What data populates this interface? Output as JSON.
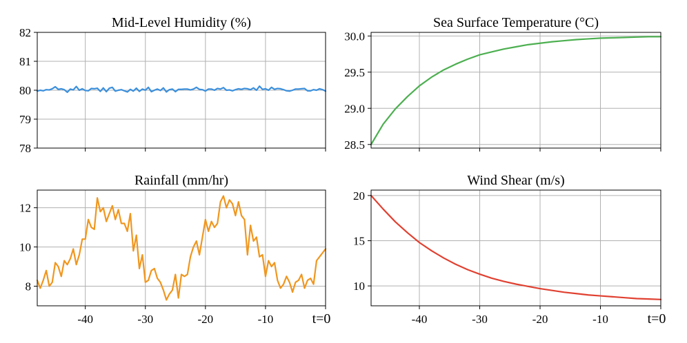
{
  "chart_data": [
    {
      "type": "line",
      "title": "Mid-Level Humidity (%)",
      "color": "#3a8fdc",
      "xlim": [
        -48,
        0
      ],
      "ylim": [
        78,
        82
      ],
      "xticks": [
        -40,
        -30,
        -20,
        -10,
        0
      ],
      "xtick_labels": [],
      "yticks": [
        78,
        79,
        80,
        81,
        82
      ],
      "ytick_labels": [
        "78",
        "79",
        "80",
        "81",
        "82"
      ],
      "grid": true,
      "x": [
        -48,
        -47.5,
        -47,
        -46.5,
        -46,
        -45.5,
        -45,
        -44.5,
        -44,
        -43.5,
        -43,
        -42.5,
        -42,
        -41.5,
        -41,
        -40.5,
        -40,
        -39.5,
        -39,
        -38.5,
        -38,
        -37.5,
        -37,
        -36.5,
        -36,
        -35.5,
        -35,
        -34.5,
        -34,
        -33.5,
        -33,
        -32.5,
        -32,
        -31.5,
        -31,
        -30.5,
        -30,
        -29.5,
        -29,
        -28.5,
        -28,
        -27.5,
        -27,
        -26.5,
        -26,
        -25.5,
        -25,
        -24.5,
        -24,
        -23.5,
        -23,
        -22.5,
        -22,
        -21.5,
        -21,
        -20.5,
        -20,
        -19.5,
        -19,
        -18.5,
        -18,
        -17.5,
        -17,
        -16.5,
        -16,
        -15.5,
        -15,
        -14.5,
        -14,
        -13.5,
        -13,
        -12.5,
        -12,
        -11.5,
        -11,
        -10.5,
        -10,
        -9.5,
        -9,
        -8.5,
        -8,
        -7.5,
        -7,
        -6.5,
        -6,
        -5.5,
        -5,
        -4.5,
        -4,
        -3.5,
        -3,
        -2.5,
        -2,
        -1.5,
        -1,
        -0.5,
        0
      ],
      "y": [
        79.97,
        80,
        79.98,
        80.02,
        80.01,
        80.05,
        80.12,
        80.03,
        80.05,
        80.02,
        79.93,
        80.04,
        80.01,
        80.13,
        80,
        80.05,
        79.99,
        79.98,
        80.06,
        80.05,
        80.07,
        79.96,
        80.08,
        79.95,
        80.07,
        80.1,
        79.97,
        80,
        80.02,
        79.98,
        79.94,
        80.03,
        79.97,
        80.07,
        79.96,
        80.04,
        80,
        80.1,
        79.95,
        80,
        80.04,
        79.99,
        80.08,
        79.94,
        80.02,
        80.04,
        79.95,
        80.03,
        80.03,
        80.04,
        80.04,
        80.01,
        80.04,
        80.1,
        80.03,
        80.02,
        79.97,
        80.04,
        80.04,
        80,
        80.06,
        80.04,
        80.09,
        80,
        80.01,
        79.98,
        80.02,
        80.05,
        80.03,
        80.06,
        80.05,
        80.02,
        80.08,
        80,
        80.14,
        80.03,
        80.05,
        80,
        80.1,
        80.03,
        80.06,
        80.05,
        80.02,
        79.98,
        79.97,
        80,
        80.04,
        80.04,
        80.05,
        80.06,
        79.98,
        79.98,
        80.02,
        80,
        80.05,
        80.02,
        79.97
      ]
    },
    {
      "type": "line",
      "title": "Sea Surface Temperature (°C)",
      "color": "#4caf50",
      "xlim": [
        -48,
        0
      ],
      "ylim": [
        28.45,
        30.05
      ],
      "xticks": [
        -40,
        -30,
        -20,
        -10,
        0
      ],
      "xtick_labels": [],
      "yticks": [
        28.5,
        29.0,
        29.5,
        30.0
      ],
      "ytick_labels": [
        "28.5",
        "29.0",
        "29.5",
        "30.0"
      ],
      "grid": true,
      "x": [
        -48,
        -46,
        -44,
        -42,
        -40,
        -38,
        -36,
        -34,
        -32,
        -30,
        -28,
        -26,
        -24,
        -22,
        -20,
        -18,
        -16,
        -14,
        -12,
        -10,
        -8,
        -6,
        -4,
        -2,
        0
      ],
      "y": [
        28.5,
        28.78,
        28.99,
        29.16,
        29.31,
        29.43,
        29.53,
        29.61,
        29.68,
        29.74,
        29.78,
        29.82,
        29.85,
        29.88,
        29.9,
        29.92,
        29.935,
        29.95,
        29.96,
        29.97,
        29.975,
        29.98,
        29.985,
        29.99,
        29.99
      ]
    },
    {
      "type": "line",
      "title": "Rainfall (mm/hr)",
      "color": "#f0961e",
      "xlim": [
        -48,
        0
      ],
      "ylim": [
        7.0,
        12.9
      ],
      "xticks": [
        -40,
        -30,
        -20,
        -10,
        0
      ],
      "xtick_labels": [
        "-40",
        "-30",
        "-20",
        "-10",
        "t=0"
      ],
      "yticks": [
        8,
        10,
        12
      ],
      "ytick_labels": [
        "8",
        "10",
        "12"
      ],
      "grid": true,
      "x": [
        -48,
        -47.5,
        -47,
        -46.5,
        -46,
        -45.5,
        -45,
        -44.5,
        -44,
        -43.5,
        -43,
        -42.5,
        -42,
        -41.5,
        -41,
        -40.5,
        -40,
        -39.5,
        -39,
        -38.5,
        -38,
        -37.5,
        -37,
        -36.5,
        -36,
        -35.5,
        -35,
        -34.5,
        -34,
        -33.5,
        -33,
        -32.5,
        -32,
        -31.5,
        -31,
        -30.5,
        -30,
        -29.5,
        -29,
        -28.5,
        -28,
        -27.5,
        -27,
        -26.5,
        -26,
        -25.5,
        -25,
        -24.5,
        -24,
        -23.5,
        -23,
        -22.5,
        -22,
        -21.5,
        -21,
        -20.5,
        -20,
        -19.5,
        -19,
        -18.5,
        -18,
        -17.5,
        -17,
        -16.5,
        -16,
        -15.5,
        -15,
        -14.5,
        -14,
        -13.5,
        -13,
        -12.5,
        -12,
        -11.5,
        -11,
        -10.5,
        -10,
        -9.5,
        -9,
        -8.5,
        -8,
        -7.5,
        -7,
        -6.5,
        -6,
        -5.5,
        -5,
        -4.5,
        -4,
        -3.5,
        -3,
        -2.5,
        -2,
        -1.5,
        -1,
        -0.5,
        0
      ],
      "y": [
        8.3,
        7.9,
        8.3,
        8.8,
        8.0,
        8.2,
        9.2,
        9.0,
        8.5,
        9.3,
        9.1,
        9.4,
        9.9,
        9.1,
        9.6,
        10.4,
        10.4,
        11.4,
        11.0,
        10.9,
        12.5,
        11.8,
        12.0,
        11.3,
        11.7,
        12.1,
        11.4,
        11.9,
        11.2,
        11.2,
        10.8,
        11.7,
        9.8,
        10.6,
        8.9,
        9.6,
        8.2,
        8.3,
        8.8,
        8.9,
        8.4,
        8.2,
        7.8,
        7.3,
        7.6,
        7.8,
        8.6,
        7.4,
        8.6,
        8.5,
        8.6,
        9.5,
        10.0,
        10.3,
        9.6,
        10.5,
        11.4,
        10.8,
        11.3,
        11.0,
        11.2,
        12.3,
        12.6,
        12.0,
        12.4,
        12.2,
        11.6,
        12.3,
        11.6,
        11.4,
        9.6,
        11.1,
        10.3,
        10.5,
        9.5,
        9.6,
        8.5,
        9.3,
        9.0,
        9.2,
        8.3,
        7.9,
        8.1,
        8.5,
        8.2,
        7.7,
        8.2,
        8.3,
        8.6,
        7.9,
        8.3,
        8.4,
        8.1,
        9.3,
        9.5,
        9.7,
        9.9
      ]
    },
    {
      "type": "line",
      "title": "Wind Shear (m/s)",
      "color": "#e04030",
      "xlim": [
        -48,
        0
      ],
      "ylim": [
        7.8,
        20.6
      ],
      "xticks": [
        -40,
        -30,
        -20,
        -10,
        0
      ],
      "xtick_labels": [
        "-40",
        "-30",
        "-20",
        "-10",
        "t=0"
      ],
      "yticks": [
        10,
        15,
        20
      ],
      "ytick_labels": [
        "10",
        "15",
        "20"
      ],
      "grid": true,
      "x": [
        -48,
        -46,
        -44,
        -42,
        -40,
        -38,
        -36,
        -34,
        -32,
        -30,
        -28,
        -26,
        -24,
        -22,
        -20,
        -18,
        -16,
        -14,
        -12,
        -10,
        -8,
        -6,
        -4,
        -2,
        0
      ],
      "y": [
        20.0,
        18.5,
        17.1,
        15.9,
        14.8,
        13.9,
        13.1,
        12.4,
        11.8,
        11.3,
        10.85,
        10.5,
        10.2,
        9.95,
        9.7,
        9.5,
        9.3,
        9.15,
        9.0,
        8.9,
        8.8,
        8.7,
        8.6,
        8.55,
        8.5
      ]
    }
  ]
}
